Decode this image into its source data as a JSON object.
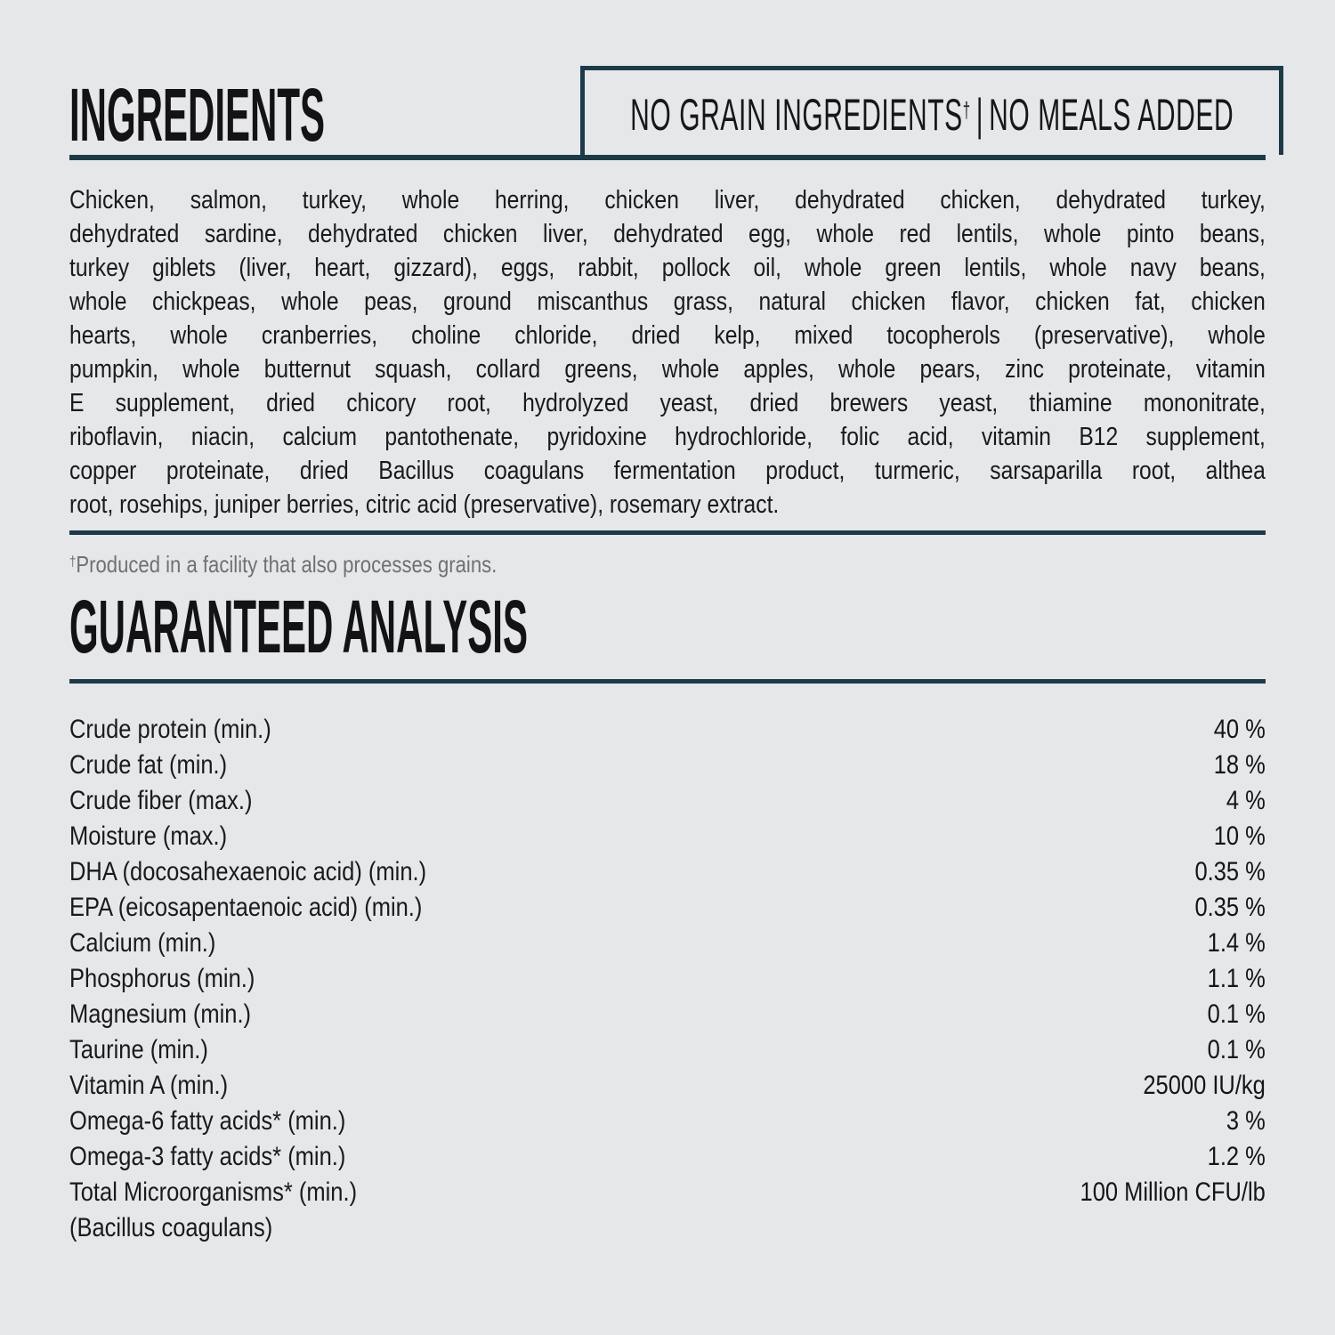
{
  "colors": {
    "background": "#e6e7e9",
    "accent_teal": "#1c3b48",
    "text": "#151517",
    "footnote_gray": "#6f7073"
  },
  "ingredients": {
    "title": "INGREDIENTS",
    "badge": {
      "left": "NO GRAIN INGREDIENTS",
      "dagger": "†",
      "separator": "|",
      "right": "NO MEALS ADDED"
    },
    "lines": [
      "Chicken, salmon, turkey, whole herring, chicken liver, dehydrated chicken, dehydrated turkey,",
      "dehydrated sardine, dehydrated chicken liver, dehydrated egg, whole red lentils, whole pinto beans,",
      "turkey giblets (liver, heart, gizzard), eggs, rabbit, pollock oil, whole green lentils, whole navy beans,",
      "whole chickpeas, whole peas, ground miscanthus grass, natural chicken flavor, chicken fat, chicken",
      "hearts, whole cranberries, choline chloride, dried kelp, mixed tocopherols (preservative), whole",
      "pumpkin, whole butternut squash, collard greens, whole apples, whole pears, zinc proteinate, vitamin",
      "E supplement, dried chicory root, hydrolyzed yeast, dried brewers yeast, thiamine mononitrate,",
      "riboflavin, niacin, calcium pantothenate, pyridoxine hydrochloride, folic acid, vitamin B12 supplement,",
      "copper proteinate, dried Bacillus coagulans fermentation product, turmeric, sarsaparilla root, althea",
      "root, rosehips, juniper berries, citric acid (preservative), rosemary extract."
    ],
    "footnote": {
      "dagger": "†",
      "text": "Produced in a facility that also processes grains."
    }
  },
  "analysis": {
    "title": "GUARANTEED ANALYSIS",
    "rows": [
      {
        "label": "Crude protein (min.)",
        "value": "40 %"
      },
      {
        "label": "Crude fat (min.)",
        "value": "18 %"
      },
      {
        "label": "Crude fiber (max.)",
        "value": "4 %"
      },
      {
        "label": "Moisture (max.)",
        "value": "10 %"
      },
      {
        "label": "DHA (docosahexaenoic acid) (min.)",
        "value": "0.35 %"
      },
      {
        "label": "EPA (eicosapentaenoic acid) (min.)",
        "value": "0.35 %"
      },
      {
        "label": "Calcium (min.)",
        "value": "1.4 %"
      },
      {
        "label": "Phosphorus (min.)",
        "value": "1.1 %"
      },
      {
        "label": "Magnesium (min.)",
        "value": "0.1 %"
      },
      {
        "label": "Taurine (min.)",
        "value": "0.1 %"
      },
      {
        "label": "Vitamin A (min.)",
        "value": "25000 IU/kg"
      },
      {
        "label": "Omega-6 fatty acids* (min.)",
        "value": "3 %"
      },
      {
        "label": "Omega-3 fatty acids* (min.)",
        "value": "1.2 %"
      },
      {
        "label": "Total Microorganisms* (min.)",
        "value": "100 Million CFU/lb"
      },
      {
        "label": "(Bacillus coagulans)",
        "value": ""
      }
    ]
  }
}
